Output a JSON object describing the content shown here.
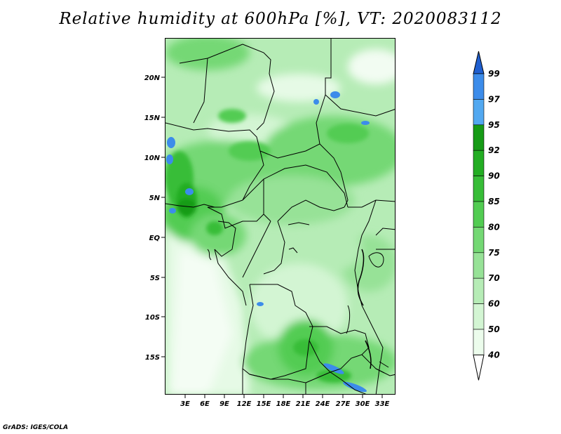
{
  "title": "Relative humidity at 600hPa [%], VT: 2020083112",
  "footer": "GrADS: IGES/COLA",
  "map": {
    "lat_labels": [
      "20N",
      "15N",
      "10N",
      "5N",
      "EQ",
      "5S",
      "10S",
      "15S"
    ],
    "lon_labels": [
      "3E",
      "6E",
      "9E",
      "12E",
      "15E",
      "18E",
      "21E",
      "24E",
      "27E",
      "30E",
      "33E"
    ]
  },
  "colorbar": {
    "labels": [
      "99",
      "97",
      "95",
      "92",
      "90",
      "85",
      "80",
      "75",
      "70",
      "60",
      "50",
      "40"
    ],
    "colors": [
      "#1f5fd0",
      "#3c8cea",
      "#52a8f0",
      "#169b16",
      "#23ad23",
      "#37bd37",
      "#52cc52",
      "#74d874",
      "#97e297",
      "#b6ecb6",
      "#d3f5d3",
      "#ecfcec"
    ]
  }
}
